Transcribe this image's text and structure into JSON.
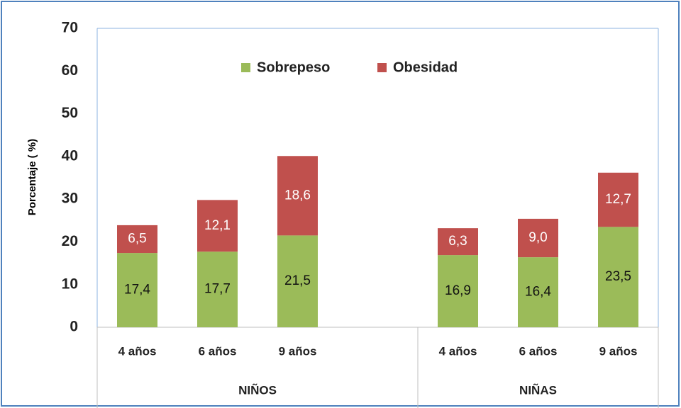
{
  "chart_data": {
    "type": "stacked_bar",
    "y_label": "Porcentaje ( %)",
    "categories": [
      "4 años",
      "6 años",
      "9 años",
      null,
      "4 años",
      "6 años",
      "9 años"
    ],
    "groups": [
      "NIÑOS",
      "NIÑAS"
    ],
    "series": [
      {
        "name": "Sobrepeso",
        "color": "#9bbb59",
        "values": [
          17.4,
          17.7,
          21.5,
          null,
          16.9,
          16.4,
          23.5
        ],
        "value_labels": [
          "17,4",
          "17,7",
          "21,5",
          null,
          "16,9",
          "16,4",
          "23,5"
        ]
      },
      {
        "name": "Obesidad",
        "color": "#c0504d",
        "values": [
          6.5,
          12.1,
          18.6,
          null,
          6.3,
          9.0,
          12.7
        ],
        "value_labels": [
          "6,5",
          "12,1",
          "18,6",
          null,
          "6,3",
          "9,0",
          "12,7"
        ]
      }
    ],
    "ylim": [
      0,
      70
    ],
    "yticks": [
      0,
      10,
      20,
      30,
      40,
      50,
      60,
      70
    ],
    "legend": "top"
  }
}
